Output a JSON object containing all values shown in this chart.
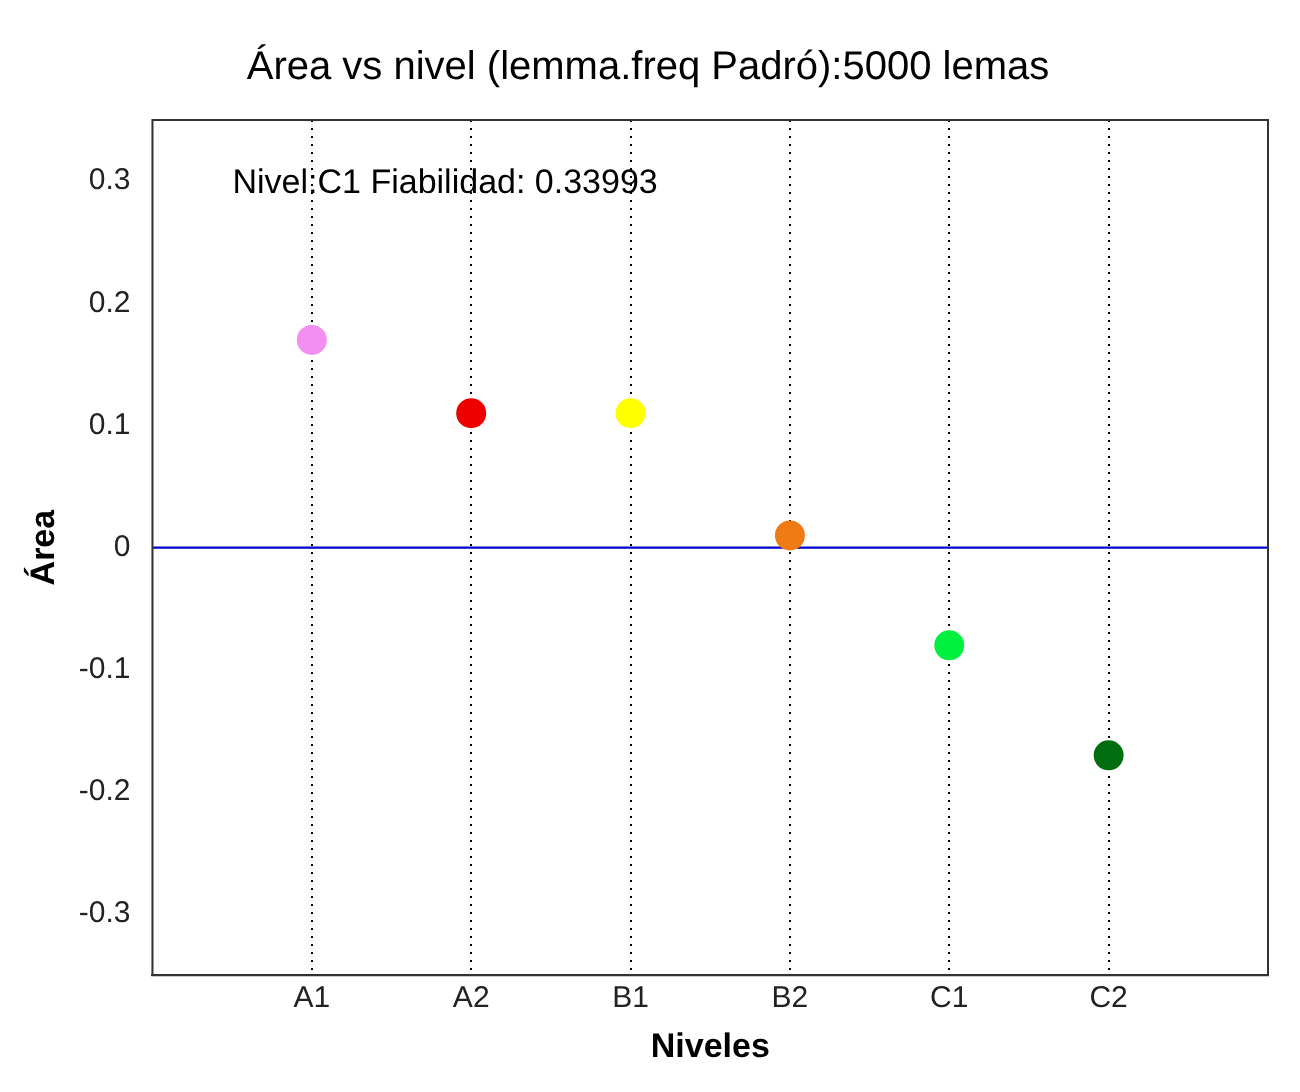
{
  "chart_data": {
    "type": "scatter",
    "title": "Área vs nivel (lemma.freq Padró):5000 lemas",
    "xlabel": "Niveles",
    "ylabel": "Área",
    "categories": [
      "A1",
      "A2",
      "B1",
      "B2",
      "C1",
      "C2"
    ],
    "series": [
      {
        "values": [
          0.17,
          0.11,
          0.11,
          0.01,
          -0.08,
          -0.17
        ],
        "colors": [
          "#f28ff0",
          "#ee0000",
          "#ffff00",
          "#f07a14",
          "#00f040",
          "#006e10"
        ]
      }
    ],
    "ylim": [
      -0.35,
      0.35
    ],
    "yticks": [
      -0.3,
      -0.2,
      -0.1,
      0,
      0.1,
      0.2,
      0.3
    ],
    "ref_lines": [
      {
        "axis": "y",
        "value": 0,
        "color": "#0000cc"
      }
    ],
    "annotations": [
      "Nivel:C1 Fiabilidad: 0.33993"
    ],
    "grid": "x",
    "marker": "circle",
    "legend": false
  }
}
